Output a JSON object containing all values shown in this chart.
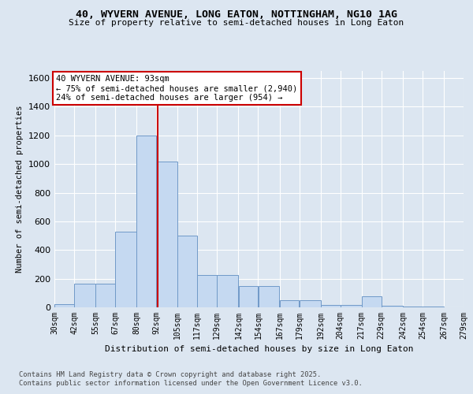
{
  "title_line1": "40, WYVERN AVENUE, LONG EATON, NOTTINGHAM, NG10 1AG",
  "title_line2": "Size of property relative to semi-detached houses in Long Eaton",
  "xlabel": "Distribution of semi-detached houses by size in Long Eaton",
  "ylabel": "Number of semi-detached properties",
  "footer_line1": "Contains HM Land Registry data © Crown copyright and database right 2025.",
  "footer_line2": "Contains public sector information licensed under the Open Government Licence v3.0.",
  "annotation_title": "40 WYVERN AVENUE: 93sqm",
  "annotation_line1": "← 75% of semi-detached houses are smaller (2,940)",
  "annotation_line2": "24% of semi-detached houses are larger (954) →",
  "property_size": 93,
  "bar_left_edges": [
    30,
    42,
    55,
    67,
    80,
    92,
    105,
    117,
    129,
    142,
    154,
    167,
    179,
    192,
    204,
    217,
    229,
    242,
    254,
    267
  ],
  "bar_widths": [
    12,
    13,
    12,
    13,
    12,
    13,
    12,
    12,
    13,
    12,
    13,
    12,
    13,
    12,
    13,
    12,
    13,
    12,
    13,
    12
  ],
  "bar_heights": [
    20,
    165,
    165,
    530,
    1200,
    1020,
    500,
    225,
    225,
    150,
    150,
    50,
    50,
    18,
    18,
    75,
    10,
    5,
    5,
    0
  ],
  "bar_color": "#c5d9f1",
  "bar_edge_color": "#7099c8",
  "vline_color": "#cc0000",
  "vline_x": 93,
  "annotation_box_color": "#cc0000",
  "ylim": [
    0,
    1650
  ],
  "yticks": [
    0,
    200,
    400,
    600,
    800,
    1000,
    1200,
    1400,
    1600
  ],
  "bg_color": "#dce6f1",
  "plot_bg_color": "#dce6f1",
  "grid_color": "#ffffff",
  "xtick_labels": [
    "30sqm",
    "42sqm",
    "55sqm",
    "67sqm",
    "80sqm",
    "92sqm",
    "105sqm",
    "117sqm",
    "129sqm",
    "142sqm",
    "154sqm",
    "167sqm",
    "179sqm",
    "192sqm",
    "204sqm",
    "217sqm",
    "229sqm",
    "242sqm",
    "254sqm",
    "267sqm",
    "279sqm"
  ]
}
